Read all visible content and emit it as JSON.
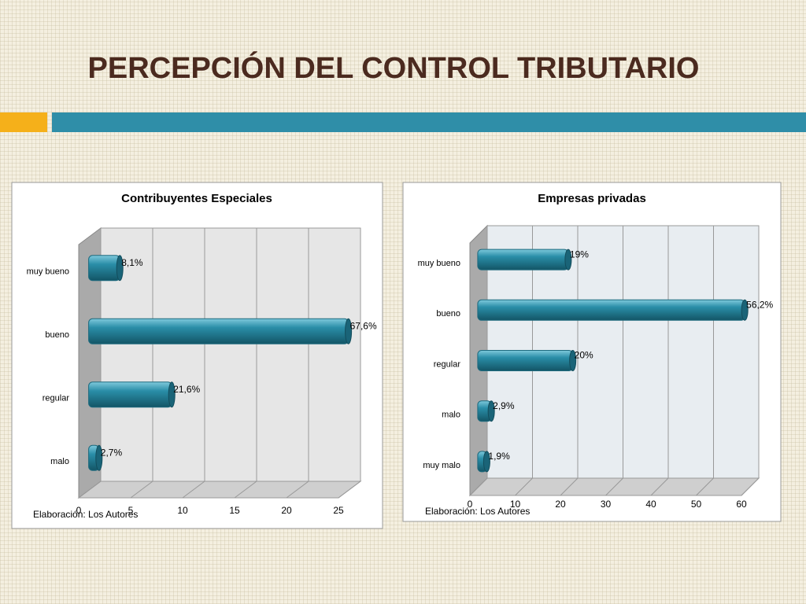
{
  "title": "PERCEPCIÓN DEL CONTROL TRIBUTARIO",
  "chart_data": [
    {
      "type": "bar",
      "orientation": "horizontal",
      "title": "Contribuyentes Especiales",
      "categories": [
        "muy bueno",
        "bueno",
        "regular",
        "malo"
      ],
      "values": [
        3,
        25,
        8,
        1
      ],
      "value_labels": [
        "8,1%",
        "67,6%",
        "21,6%",
        "2,7%"
      ],
      "color": "#2a8ea8",
      "xlim": [
        0,
        25
      ],
      "xticks": [
        0,
        5,
        10,
        15,
        20,
        25
      ],
      "grid": true,
      "note": "Elaboración: Los Autores"
    },
    {
      "type": "bar",
      "orientation": "horizontal",
      "title": "Empresas privadas",
      "categories": [
        "muy bueno",
        "bueno",
        "regular",
        "malo",
        "muy malo"
      ],
      "values": [
        20,
        59,
        21,
        3,
        2
      ],
      "value_labels": [
        "19%",
        "56,2%",
        "20%",
        "2,9%",
        "1,9%"
      ],
      "color": "#2a8ea8",
      "xlim": [
        0,
        60
      ],
      "xticks": [
        0,
        10,
        20,
        30,
        40,
        50,
        60
      ],
      "grid": true,
      "note": "Elaboración: Los Autores"
    }
  ]
}
